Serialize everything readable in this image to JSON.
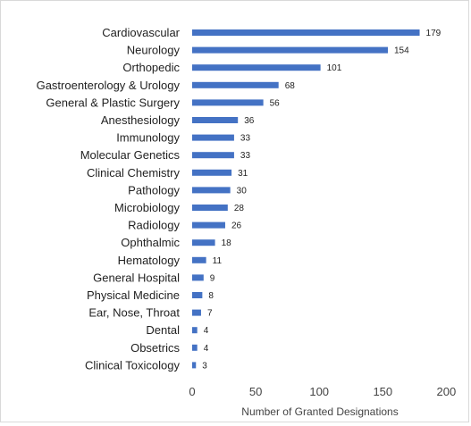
{
  "chart_data": {
    "type": "bar",
    "orientation": "horizontal",
    "title": "",
    "xlabel": "Number of Granted Designations",
    "ylabel": "",
    "xlim": [
      0,
      200
    ],
    "xticks": [
      0,
      50,
      100,
      150,
      200
    ],
    "grid": false,
    "legend": "none",
    "bar_color": "#4472c4",
    "categories": [
      "Cardiovascular",
      "Neurology",
      "Orthopedic",
      "Gastroenterology & Urology",
      "General & Plastic Surgery",
      "Anesthesiology",
      "Immunology",
      "Molecular Genetics",
      "Clinical Chemistry",
      "Pathology",
      "Microbiology",
      "Radiology",
      "Ophthalmic",
      "Hematology",
      "General Hospital",
      "Physical Medicine",
      "Ear, Nose, Throat",
      "Dental",
      "Obsetrics",
      "Clinical Toxicology"
    ],
    "values": [
      179,
      154,
      101,
      68,
      56,
      36,
      33,
      33,
      31,
      30,
      28,
      26,
      18,
      11,
      9,
      8,
      7,
      4,
      4,
      3
    ]
  }
}
